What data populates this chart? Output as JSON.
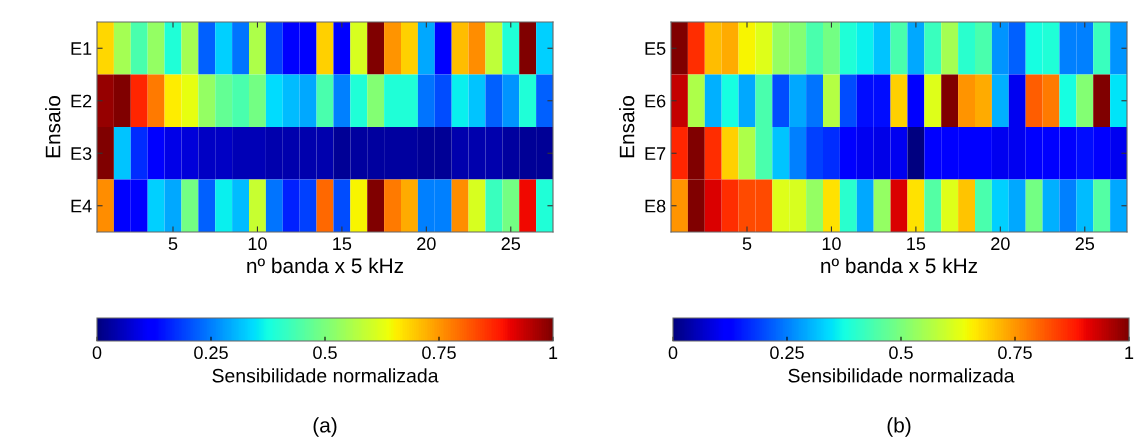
{
  "chart_data": [
    {
      "type": "heatmap",
      "xlabel": "nº banda x 5 kHz",
      "ylabel": "Ensaio",
      "clabel": "Sensibilidade normalizada",
      "annotations": [
        "(a)"
      ],
      "x": [
        1,
        2,
        3,
        4,
        5,
        6,
        7,
        8,
        9,
        10,
        11,
        12,
        13,
        14,
        15,
        16,
        17,
        18,
        19,
        20,
        21,
        22,
        23,
        24,
        25,
        26,
        27
      ],
      "xlim": [
        0.5,
        27.5
      ],
      "xticks": [
        5,
        10,
        15,
        20,
        25
      ],
      "y_categories": [
        "E1",
        "E2",
        "E3",
        "E4"
      ],
      "cells": [
        [
          0.68,
          0.55,
          0.44,
          0.53,
          0.39,
          0.55,
          0.22,
          0.33,
          0.24,
          0.56,
          0.19,
          0.11,
          0.125,
          0.69,
          0.11,
          0.61,
          1.0,
          0.75,
          0.69,
          0.29,
          0.11,
          0.71,
          0.76,
          0.58,
          0.39,
          1.0,
          0.33
        ],
        [
          0.98,
          1.0,
          0.87,
          0.78,
          0.66,
          0.63,
          0.53,
          0.47,
          0.44,
          0.49,
          0.34,
          0.31,
          0.29,
          0.44,
          0.25,
          0.39,
          0.51,
          0.39,
          0.39,
          0.24,
          0.2,
          0.36,
          0.32,
          0.22,
          0.27,
          0.39,
          0.22
        ],
        [
          1.0,
          0.32,
          0.17,
          0.12,
          0.09,
          0.08,
          0.06,
          0.06,
          0.05,
          0.05,
          0.04,
          0.04,
          0.04,
          0.04,
          0.02,
          0.03,
          0.03,
          0.03,
          0.03,
          0.02,
          0.02,
          0.04,
          0.04,
          0.04,
          0.03,
          0.02,
          0.02
        ],
        [
          0.76,
          0.125,
          0.11,
          0.33,
          0.29,
          0.49,
          0.22,
          0.36,
          0.31,
          0.59,
          0.24,
          0.16,
          0.19,
          0.8,
          0.2,
          0.65,
          1.0,
          0.78,
          0.73,
          0.25,
          0.25,
          0.76,
          0.61,
          0.42,
          0.49,
          0.9,
          0.39
        ]
      ],
      "clim": [
        0,
        1
      ],
      "cticks": [
        0,
        0.25,
        0.5,
        0.75,
        1
      ]
    },
    {
      "type": "heatmap",
      "xlabel": "nº banda x 5 kHz",
      "ylabel": "Ensaio",
      "clabel": "Sensibilidade normalizada",
      "annotations": [
        "(b)"
      ],
      "x": [
        1,
        2,
        3,
        4,
        5,
        6,
        7,
        8,
        9,
        10,
        11,
        12,
        13,
        14,
        15,
        16,
        17,
        18,
        19,
        20,
        21,
        22,
        23,
        24,
        25,
        26,
        27
      ],
      "xlim": [
        0.5,
        27.5
      ],
      "xticks": [
        5,
        10,
        15,
        20,
        25
      ],
      "y_categories": [
        "E5",
        "E6",
        "E7",
        "E8"
      ],
      "cells": [
        [
          1.0,
          0.86,
          0.71,
          0.73,
          0.65,
          0.62,
          0.53,
          0.51,
          0.44,
          0.49,
          0.39,
          0.36,
          0.32,
          0.44,
          0.29,
          0.42,
          0.55,
          0.4,
          0.44,
          0.27,
          0.22,
          0.375,
          0.39,
          0.25,
          0.25,
          0.42,
          0.27
        ],
        [
          0.94,
          0.56,
          0.3,
          0.375,
          0.29,
          0.44,
          0.2,
          0.29,
          0.24,
          0.57,
          0.2,
          0.14,
          0.14,
          0.69,
          0.125,
          0.62,
          1.0,
          0.75,
          0.73,
          0.3,
          0.1,
          0.81,
          0.78,
          0.375,
          0.51,
          1.0,
          0.35
        ],
        [
          0.87,
          1.0,
          0.86,
          0.69,
          0.56,
          0.44,
          0.32,
          0.25,
          0.19,
          0.17,
          0.11,
          0.1,
          0.09,
          0.1,
          0.0,
          0.11,
          0.125,
          0.12,
          0.11,
          0.1,
          0.1,
          0.125,
          0.12,
          0.11,
          0.14,
          0.11,
          0.1
        ],
        [
          0.75,
          1.0,
          0.92,
          0.86,
          0.83,
          0.83,
          0.62,
          0.61,
          0.53,
          0.67,
          0.4,
          0.29,
          0.53,
          0.92,
          0.67,
          0.45,
          0.62,
          0.7,
          0.44,
          0.33,
          0.29,
          0.49,
          0.3,
          0.25,
          0.31,
          0.45,
          0.29
        ]
      ],
      "clim": [
        0,
        1
      ],
      "cticks": [
        0,
        0.25,
        0.5,
        0.75,
        1
      ]
    }
  ]
}
